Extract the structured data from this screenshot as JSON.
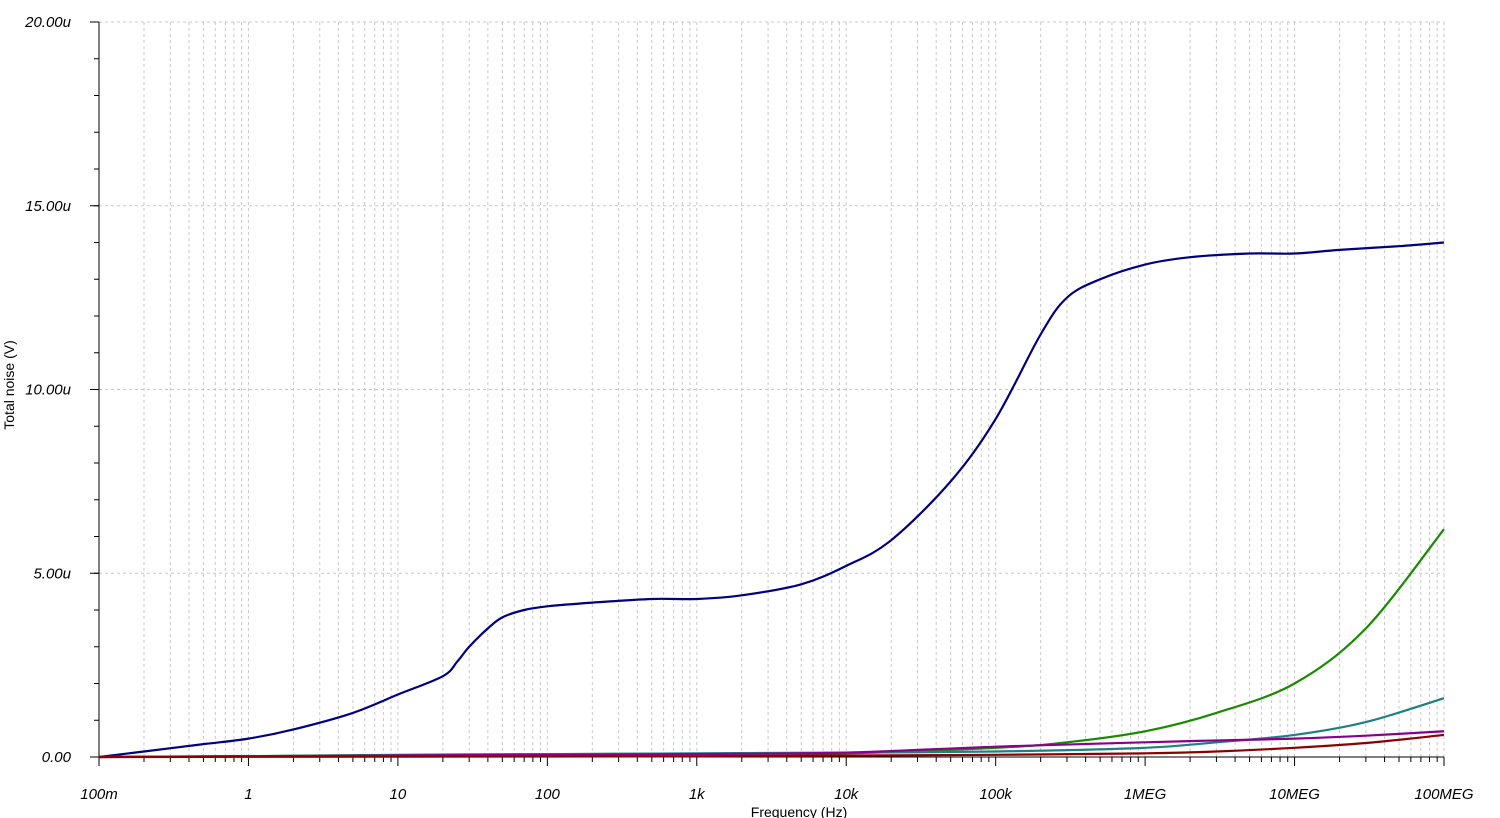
{
  "chart_data": {
    "type": "line",
    "xlabel": "Frequency (Hz)",
    "ylabel": "Total noise (V)",
    "x_scale": "log",
    "xlim": [
      0.1,
      100000000
    ],
    "ylim": [
      0,
      2e-05
    ],
    "grid": true,
    "x_ticks": [
      {
        "value": 0.1,
        "label": "100m"
      },
      {
        "value": 1,
        "label": "1"
      },
      {
        "value": 10,
        "label": "10"
      },
      {
        "value": 100,
        "label": "100"
      },
      {
        "value": 1000,
        "label": "1k"
      },
      {
        "value": 10000,
        "label": "10k"
      },
      {
        "value": 100000,
        "label": "100k"
      },
      {
        "value": 1000000,
        "label": "1MEG"
      },
      {
        "value": 10000000,
        "label": "10MEG"
      },
      {
        "value": 100000000,
        "label": "100MEG"
      }
    ],
    "y_ticks": [
      {
        "value": 0,
        "label": "0.00"
      },
      {
        "value": 5e-06,
        "label": "5.00u"
      },
      {
        "value": 1e-05,
        "label": "10.00u"
      },
      {
        "value": 1.5e-05,
        "label": "15.00u"
      },
      {
        "value": 2e-05,
        "label": "20.00u"
      }
    ],
    "series": [
      {
        "color": "#000080",
        "x": [
          0.1,
          0.2,
          0.5,
          1,
          2,
          5,
          10,
          20,
          25,
          30,
          40,
          50,
          70,
          100,
          200,
          500,
          1000,
          2000,
          5000,
          10000,
          20000,
          50000,
          100000,
          200000,
          300000,
          500000,
          1000000,
          2000000,
          5000000,
          10000000,
          20000000,
          50000000,
          100000000
        ],
        "y": [
          0.0,
          1.5e-07,
          3.5e-07,
          5e-07,
          7.5e-07,
          1.2e-06,
          1.7e-06,
          2.2e-06,
          2.6e-06,
          3e-06,
          3.5e-06,
          3.8e-06,
          4e-06,
          4.1e-06,
          4.2e-06,
          4.3e-06,
          4.3e-06,
          4.4e-06,
          4.7e-06,
          5.2e-06,
          5.9e-06,
          7.5e-06,
          9.2e-06,
          1.15e-05,
          1.25e-05,
          1.3e-05,
          1.34e-05,
          1.36e-05,
          1.37e-05,
          1.37e-05,
          1.38e-05,
          1.39e-05,
          1.4e-05
        ]
      },
      {
        "color": "#1a8a00",
        "x": [
          0.1,
          1,
          10,
          100,
          1000,
          10000,
          100000,
          300000,
          1000000,
          3000000,
          10000000,
          30000000,
          100000000
        ],
        "y": [
          0.0,
          2e-08,
          6e-08,
          8e-08,
          9e-08,
          1e-07,
          2.5e-07,
          4e-07,
          7e-07,
          1.2e-06,
          2e-06,
          3.5e-06,
          6.2e-06
        ]
      },
      {
        "color": "#1e8080",
        "x": [
          0.1,
          1000,
          10000,
          100000,
          1000000,
          3000000,
          10000000,
          30000000,
          100000000
        ],
        "y": [
          0.0,
          1e-07,
          1.2e-07,
          1.5e-07,
          2.5e-07,
          4e-07,
          6e-07,
          9.5e-07,
          1.6e-06
        ]
      },
      {
        "color": "#8b008b",
        "x": [
          0.1,
          1,
          100,
          1000,
          10000,
          100000,
          1000000,
          3000000,
          10000000,
          30000000,
          100000000
        ],
        "y": [
          0.0,
          2e-08,
          6e-08,
          8e-08,
          1.2e-07,
          2.8e-07,
          4e-07,
          4.5e-07,
          5e-07,
          5.8e-07,
          7e-07
        ]
      },
      {
        "color": "#8b0000",
        "x": [
          0.1,
          10,
          1000,
          10000,
          100000,
          1000000,
          3000000,
          10000000,
          30000000,
          100000000
        ],
        "y": [
          0.0,
          1e-08,
          2e-08,
          4e-08,
          6e-08,
          1e-07,
          1.5e-07,
          2.5e-07,
          3.8e-07,
          6e-07
        ]
      }
    ]
  }
}
